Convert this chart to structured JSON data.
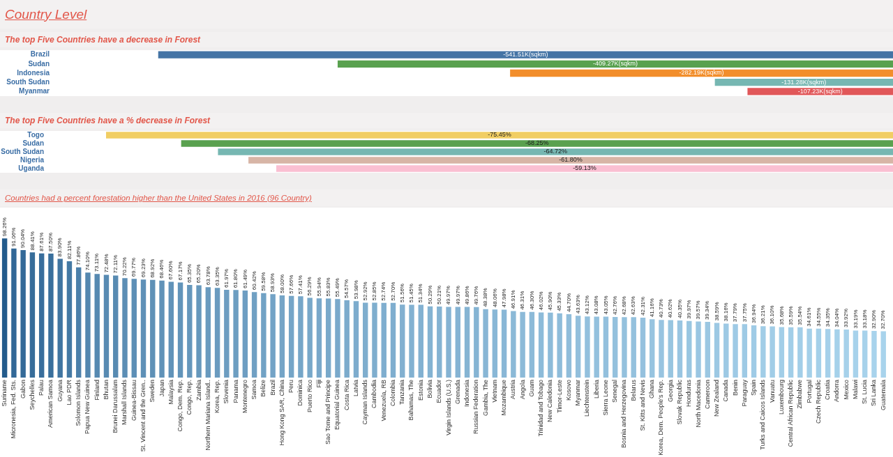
{
  "chart_data": [
    {
      "type": "other",
      "title": "Country Level"
    },
    {
      "type": "bar",
      "orientation": "horizontal",
      "title": "The top Five Countries have a decrease in Forest",
      "categories": [
        "Brazil",
        "Sudan",
        "Indonesia",
        "South Sudan",
        "Myanmar"
      ],
      "values": [
        -541.51,
        -409.27,
        -282.19,
        -131.28,
        -107.23
      ],
      "colors": [
        "#4474a5",
        "#59a14f",
        "#f28e2b",
        "#76b7b2",
        "#e15759"
      ],
      "value_labels": [
        "-541.51K(sqkm)",
        "-409.27K(sqkm)",
        "-282.19K(sqkm)",
        "-131.28K(sqkm)",
        "-107.23K(sqkm)"
      ],
      "tick_labels": "y"
    },
    {
      "type": "bar",
      "orientation": "horizontal",
      "title": "The top Five Countries have a % decrease in Forest",
      "categories": [
        "Togo",
        "Sudan",
        "South Sudan",
        "Nigeria",
        "Uganda"
      ],
      "values": [
        -75.45,
        -68.25,
        -64.72,
        -61.8,
        -59.13
      ],
      "colors": [
        "#f1ce63",
        "#59a14f",
        "#76b7b2",
        "#d7b5a6",
        "#fabfd2"
      ],
      "value_labels": [
        "-75.45%",
        "-68.25%",
        "-64.72%",
        "-61.80%",
        "-59.13%"
      ],
      "tick_labels": "y"
    },
    {
      "type": "bar",
      "title": "Countries had a percent forestation higher than the United States in 2016 (96 Country)",
      "categories": [
        "Suriname",
        "Micronesia, Fed. Sts.",
        "Gabon",
        "Seychelles",
        "Palau",
        "American Samoa",
        "Guyana",
        "Lao PDR",
        "Solomon Islands",
        "Papua New Guinea",
        "Finland",
        "Bhutan",
        "Brunei Darussalam",
        "Marshall Islands",
        "Guinea-Bissau",
        "St. Vincent and the Gren..",
        "Sweden",
        "Japan",
        "Malaysia",
        "Congo, Dem. Rep.",
        "Congo, Rep.",
        "Zambia",
        "Northern Mariana Island..",
        "Korea, Rep.",
        "Slovenia",
        "Panama",
        "Montenegro",
        "Samoa",
        "Belize",
        "Brazil",
        "Hong Kong SAR, China",
        "Peru",
        "Dominica",
        "Puerto Rico",
        "Fiji",
        "Sao Tome and Principe",
        "Equatorial Guinea",
        "Costa Rica",
        "Latvia",
        "Cayman Islands",
        "Cambodia",
        "Venezuela, RB",
        "Colombia",
        "Tanzania",
        "Bahamas, The",
        "Estonia",
        "Bolivia",
        "Ecuador",
        "Virgin Islands (U.S.)",
        "Grenada",
        "Indonesia",
        "Russian Federation",
        "Gambia, The",
        "Vietnam",
        "Mozambique",
        "Austria",
        "Angola",
        "Guam",
        "Trinidad and Tobago",
        "New Caledonia",
        "Timor-Leste",
        "Kosovo",
        "Myanmar",
        "Liechtenstein",
        "Liberia",
        "Sierra Leone",
        "Senegal",
        "Bosnia and Herzegovina",
        "Belarus",
        "St. Kitts and Nevis",
        "Ghana",
        "Korea, Dem. People's Rep.",
        "Georgia",
        "Slovak Republic",
        "Honduras",
        "North Macedonia",
        "Cameroon",
        "New Zealand",
        "Canada",
        "Benin",
        "Paraguay",
        "Spain",
        "Turks and Caicos Islands",
        "Vanuatu",
        "Luxembourg",
        "Central African Republic",
        "Zimbabwe",
        "Portugal",
        "Czech Republic",
        "Croatia",
        "Andorra",
        "Mexico",
        "Malawi",
        "St. Lucia",
        "Sri Lanka",
        "Guatemala"
      ],
      "values": [
        98.26,
        91.06,
        90.04,
        88.41,
        87.61,
        87.5,
        83.9,
        82.11,
        77.86,
        74.1,
        73.11,
        72.48,
        72.11,
        70.22,
        69.77,
        69.23,
        68.92,
        68.46,
        67.6,
        67.17,
        65.35,
        65.2,
        63.78,
        63.35,
        61.97,
        61.8,
        61.49,
        60.42,
        59.58,
        58.93,
        58.0,
        57.66,
        57.41,
        56.29,
        55.94,
        55.83,
        55.49,
        54.57,
        53.98,
        52.92,
        52.85,
        52.74,
        52.7,
        51.56,
        51.45,
        51.34,
        50.29,
        50.21,
        49.97,
        49.97,
        49.86,
        49.76,
        48.38,
        48.06,
        47.98,
        46.91,
        46.31,
        46.3,
        46.02,
        45.9,
        45.33,
        44.7,
        43.63,
        43.12,
        43.08,
        43.05,
        42.76,
        42.68,
        42.63,
        42.31,
        41.16,
        40.73,
        40.62,
        40.35,
        39.97,
        39.57,
        39.34,
        38.59,
        38.16,
        37.79,
        37.75,
        36.94,
        36.21,
        36.1,
        35.68,
        35.59,
        35.54,
        34.61,
        34.55,
        34.35,
        34.04,
        33.92,
        33.19,
        33.18,
        32.9,
        32.7
      ],
      "value_labels": [
        "98.26%",
        "91.06%",
        "90.04%",
        "88.41%",
        "87.61%",
        "87.50%",
        "83.90%",
        "82.11%",
        "77.86%",
        "74.10%",
        "73.11%",
        "72.48%",
        "72.11%",
        "70.22%",
        "69.77%",
        "69.23%",
        "68.92%",
        "68.46%",
        "67.60%",
        "67.17%",
        "65.35%",
        "65.20%",
        "63.78%",
        "63.35%",
        "61.97%",
        "61.80%",
        "61.49%",
        "60.42%",
        "59.58%",
        "58.93%",
        "58.00%",
        "57.66%",
        "57.41%",
        "56.29%",
        "55.94%",
        "55.83%",
        "55.49%",
        "54.57%",
        "53.98%",
        "52.92%",
        "52.85%",
        "52.74%",
        "52.70%",
        "51.56%",
        "51.45%",
        "51.34%",
        "50.29%",
        "50.21%",
        "49.97%",
        "49.97%",
        "49.86%",
        "49.76%",
        "48.38%",
        "48.06%",
        "47.98%",
        "46.91%",
        "46.31%",
        "46.30%",
        "46.02%",
        "45.90%",
        "45.33%",
        "44.70%",
        "43.63%",
        "43.12%",
        "43.08%",
        "43.05%",
        "42.76%",
        "42.68%",
        "42.63%",
        "42.31%",
        "41.16%",
        "40.73%",
        "40.62%",
        "40.35%",
        "39.97%",
        "39.57%",
        "39.34%",
        "38.59%",
        "38.16%",
        "37.79%",
        "37.75%",
        "36.94%",
        "36.21%",
        "36.10%",
        "35.68%",
        "35.59%",
        "35.54%",
        "34.61%",
        "34.55%",
        "34.35%",
        "34.04%",
        "33.92%",
        "33.19%",
        "33.18%",
        "32.90%",
        "32.70%"
      ],
      "colors": [
        "#235b8c",
        "#326897",
        "#346a98",
        "#376d9a",
        "#396e9c",
        "#396f9c",
        "#4075a1",
        "#4479a4",
        "#4c80aa",
        "#5487af",
        "#5689b1",
        "#578ab2",
        "#588bb2",
        "#5c8eb5",
        "#5d8fb6",
        "#5e90b7",
        "#5f91b7",
        "#6092b8",
        "#6193b9",
        "#6294ba",
        "#6697bc",
        "#6698bc",
        "#699abe",
        "#6a9bbf",
        "#6d9dc1",
        "#6d9ec1",
        "#6e9ec2",
        "#70a0c3",
        "#71a2c5",
        "#73a3c6",
        "#75a5c7",
        "#75a5c7",
        "#76a6c8",
        "#78a8c9",
        "#79a8ca",
        "#79a9ca",
        "#7aa9cb",
        "#7cabcc",
        "#7daccd",
        "#7faece",
        "#7faece",
        "#7faecf",
        "#7faecf",
        "#82b0d0",
        "#82b1d1",
        "#82b1d1",
        "#84b3d2",
        "#84b3d2",
        "#85b3d3",
        "#85b3d3",
        "#85b4d3",
        "#85b4d3",
        "#88b6d5",
        "#89b7d6",
        "#89b7d6",
        "#8bb9d7",
        "#8cbad8",
        "#8cbad8",
        "#8dbbd9",
        "#8dbbd9",
        "#8ebcda",
        "#90bdda",
        "#92bfdc",
        "#93c0dd",
        "#93c0dd",
        "#93c0dd",
        "#94c1dd",
        "#94c1dd",
        "#94c1dd",
        "#95c1de",
        "#97c4e0",
        "#98c4e0",
        "#98c5e0",
        "#99c5e1",
        "#99c6e1",
        "#9ac6e2",
        "#9bc7e2",
        "#9cc8e3",
        "#9dc9e4",
        "#9ecae5",
        "#9ecae5",
        "#9fcbe6",
        "#a1cde7",
        "#a1cde7",
        "#a2cee8",
        "#a2cee8",
        "#a2cee8",
        "#a4d0e9",
        "#a4d0e9",
        "#a5d0ea",
        "#a5d1ea",
        "#a6d1ea",
        "#a7d2eb",
        "#a7d2eb",
        "#a8d3ec",
        "#a8d3ec"
      ],
      "ylim": [
        0,
        120
      ],
      "tick_labels": "x"
    }
  ]
}
